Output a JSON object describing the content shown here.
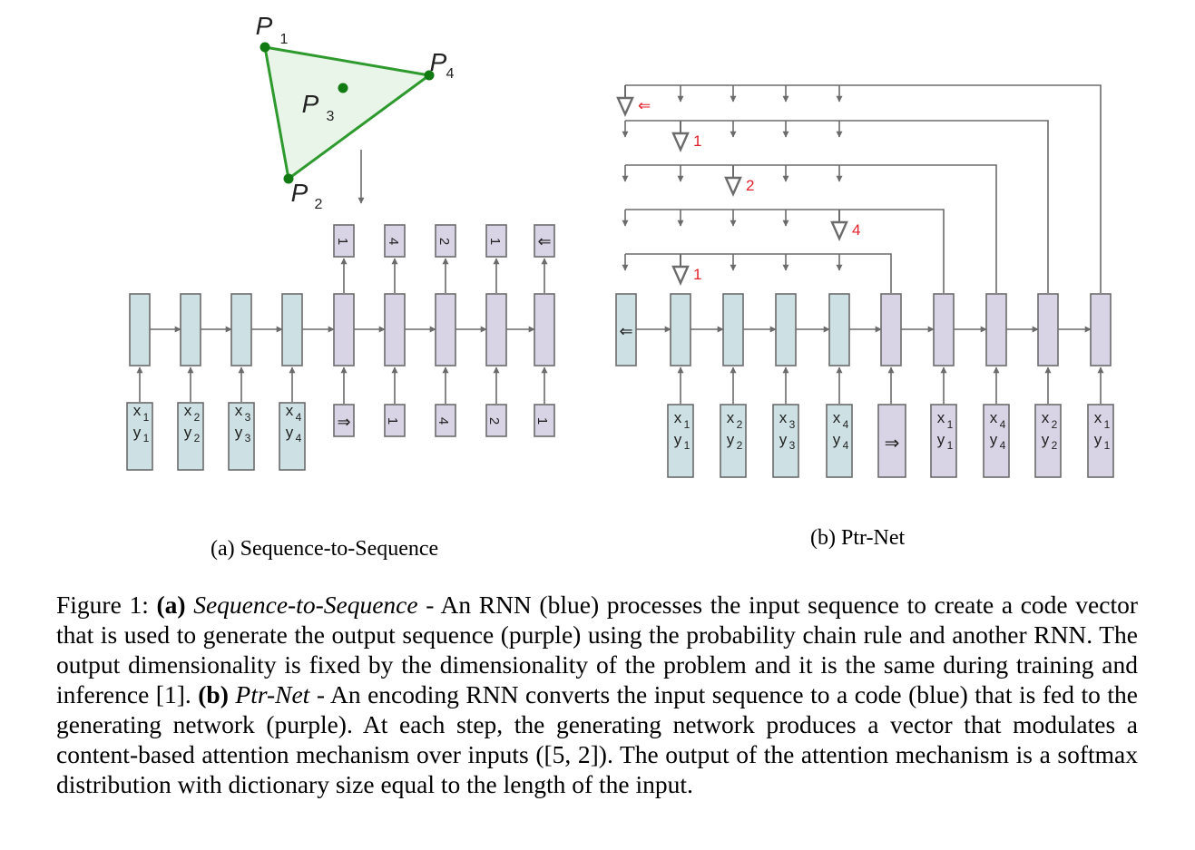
{
  "colors": {
    "encoder": "#cde0e3",
    "decoder": "#d9d3e6",
    "stroke": "#6b6b6b",
    "arrow": "#6b6b6b",
    "triangle_fill": "#eaf5ea",
    "triangle_edge": "#2e9a2e",
    "point": "#127a12",
    "pointer_label": "#e0202a"
  },
  "triangle": {
    "points": [
      {
        "label": "P",
        "sub": "1"
      },
      {
        "label": "P",
        "sub": "4"
      },
      {
        "label": "P",
        "sub": "3"
      },
      {
        "label": "P",
        "sub": "2"
      }
    ]
  },
  "seq2seq": {
    "outputs": [
      "1",
      "4",
      "2",
      "1",
      "⇐"
    ],
    "decoder_inputs": [
      "⇒",
      "1",
      "4",
      "2",
      "1"
    ],
    "inputs": [
      {
        "x": "x",
        "xs": "1",
        "y": "y",
        "ys": "1"
      },
      {
        "x": "x",
        "xs": "2",
        "y": "y",
        "ys": "2"
      },
      {
        "x": "x",
        "xs": "3",
        "y": "y",
        "ys": "3"
      },
      {
        "x": "x",
        "xs": "4",
        "y": "y",
        "ys": "4"
      }
    ]
  },
  "ptrnet": {
    "init_symbol": "⇐",
    "go_symbol": "⇒",
    "inputs": [
      {
        "x": "x",
        "xs": "1",
        "y": "y",
        "ys": "1"
      },
      {
        "x": "x",
        "xs": "2",
        "y": "y",
        "ys": "2"
      },
      {
        "x": "x",
        "xs": "3",
        "y": "y",
        "ys": "3"
      },
      {
        "x": "x",
        "xs": "4",
        "y": "y",
        "ys": "4"
      }
    ],
    "decoder_inputs": [
      {
        "x": "x",
        "xs": "1",
        "y": "y",
        "ys": "1"
      },
      {
        "x": "x",
        "xs": "4",
        "y": "y",
        "ys": "4"
      },
      {
        "x": "x",
        "xs": "2",
        "y": "y",
        "ys": "2"
      },
      {
        "x": "x",
        "xs": "1",
        "y": "y",
        "ys": "1"
      }
    ],
    "pointer_labels": [
      "⇐",
      "1",
      "2",
      "4",
      "1"
    ]
  },
  "subcaptions": {
    "a": "(a) Sequence-to-Sequence",
    "b": "(b) Ptr-Net"
  },
  "caption": {
    "figure_label": "Figure 1: ",
    "a_label": "(a)",
    "a_name": "Sequence-to-Sequence",
    "a_text": " - An RNN (blue) processes the input sequence to create a code vector that is used to generate the output sequence (purple) using the probability chain rule and another RNN. The output dimensionality is fixed by the dimensionality of the problem and it is the same during training and inference [1]. ",
    "b_label": "(b)",
    "b_name": "Ptr-Net",
    "b_text": " - An encoding RNN converts the input sequence to a code (blue) that is fed to the generating network (purple). At each step, the generating network produces a vector that modulates a content-based attention mechanism over inputs ([5, 2]). The output of the attention mechanism is a softmax distribution with dictionary size equal to the length of the input."
  }
}
